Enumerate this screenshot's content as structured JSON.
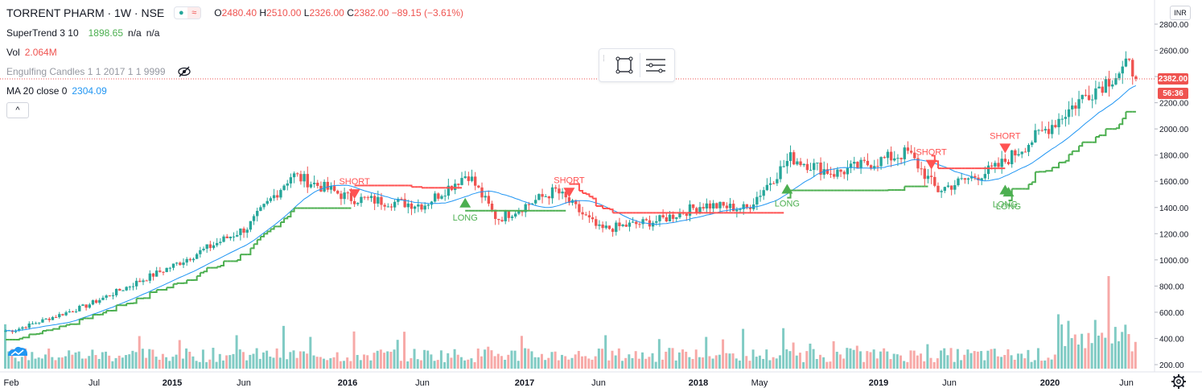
{
  "header": {
    "symbol": "TORRENT PHARM · 1W · NSE",
    "ohlc": [
      {
        "k": "O",
        "v": "2480.40"
      },
      {
        "k": "H",
        "v": "2510.00"
      },
      {
        "k": "L",
        "v": "2326.00"
      },
      {
        "k": "C",
        "v": "2382.00"
      }
    ],
    "change": "−89.15 (−3.61%)"
  },
  "indicators": [
    {
      "label": "SuperTrend 3 10",
      "values": [
        {
          "text": "1898.65",
          "color": "#4caf50"
        },
        {
          "text": "n/a",
          "color": "#131722"
        },
        {
          "text": "n/a",
          "color": "#131722"
        }
      ]
    },
    {
      "label": "Vol",
      "values": [
        {
          "text": "2.064M",
          "color": "#ef5350"
        }
      ]
    },
    {
      "label": "Engulfing Candles 1 1 2017 1 1 9999",
      "values": [],
      "muted": true,
      "icon": "eye-crossed-icon"
    },
    {
      "label": "MA 20 close 0",
      "values": [
        {
          "text": "2304.09",
          "color": "#2196f3"
        }
      ]
    }
  ],
  "collapse_label": "^",
  "currency_button": "INR",
  "price_axis": {
    "labels": [
      "2800.00",
      "2600.00",
      "2400.00",
      "2200.00",
      "2000.00",
      "1800.00",
      "1600.00",
      "1400.00",
      "1200.00",
      "1000.00",
      "800.00",
      "600.00",
      "400.00",
      "200.00"
    ],
    "current_price": "2382.00",
    "countdown": "56:36"
  },
  "time_axis": {
    "labels": [
      "Feb",
      "Jul",
      "2015",
      "Jun",
      "2016",
      "Jun",
      "2017",
      "Jun",
      "2018",
      "May",
      "2019",
      "Jun",
      "2020",
      "Jun"
    ]
  },
  "signals": [
    {
      "type": "SHORT",
      "label": "SHORT"
    },
    {
      "type": "LONG",
      "label": "LONG"
    },
    {
      "type": "SHORT",
      "label": "SHORT"
    },
    {
      "type": "LONG",
      "label": "LONG"
    },
    {
      "type": "SHORT",
      "label": "SHORT"
    },
    {
      "type": "LONG",
      "label": "LONG"
    },
    {
      "type": "SHORT",
      "label": "SHORT"
    },
    {
      "type": "LONG",
      "label": "LONG"
    }
  ],
  "colors": {
    "up": "#26a69a",
    "down": "#ef5350",
    "ma": "#2196f3",
    "supertrend_up": "#4caf50",
    "supertrend_down": "#ff5252",
    "vol_up": "#80cbc4",
    "vol_down": "#f7a9a7"
  },
  "chart_data": {
    "type": "candlestick",
    "price_range": [
      170,
      2870
    ],
    "key_points": [
      {
        "date": "2014-02",
        "close": 460
      },
      {
        "date": "2014-07",
        "close": 650
      },
      {
        "date": "2015-01",
        "close": 960
      },
      {
        "date": "2015-06",
        "close": 1250
      },
      {
        "date": "2015-09",
        "close": 1650
      },
      {
        "date": "2016-01",
        "close": 1470
      },
      {
        "date": "2016-06",
        "close": 1420
      },
      {
        "date": "2016-09",
        "close": 1660
      },
      {
        "date": "2016-11",
        "close": 1310
      },
      {
        "date": "2017-03",
        "close": 1530
      },
      {
        "date": "2017-06",
        "close": 1230
      },
      {
        "date": "2017-10",
        "close": 1300
      },
      {
        "date": "2018-01",
        "close": 1420
      },
      {
        "date": "2018-04",
        "close": 1390
      },
      {
        "date": "2018-07",
        "close": 1780
      },
      {
        "date": "2018-10",
        "close": 1660
      },
      {
        "date": "2019-03",
        "close": 1820
      },
      {
        "date": "2019-05",
        "close": 1530
      },
      {
        "date": "2019-09",
        "close": 1700
      },
      {
        "date": "2020-01",
        "close": 2050
      },
      {
        "date": "2020-03",
        "close": 2250
      },
      {
        "date": "2020-06",
        "close": 2480
      },
      {
        "date": "2020-07",
        "close": 2382
      }
    ],
    "last": {
      "open": 2480.4,
      "high": 2510.0,
      "low": 2326.0,
      "close": 2382.0
    },
    "supertrend_last": 1898.65,
    "ma20_last": 2304.09,
    "volume_last": "2.064M"
  }
}
